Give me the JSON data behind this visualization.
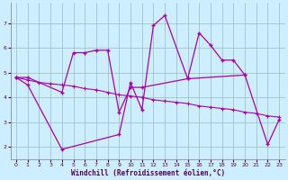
{
  "line_a_x": [
    0,
    1,
    2,
    3,
    4,
    5,
    6,
    7,
    8,
    9,
    10,
    11,
    12,
    13,
    14,
    15,
    16,
    17,
    18,
    19,
    20,
    21,
    22,
    23
  ],
  "line_a_y": [
    4.8,
    4.7,
    4.6,
    4.55,
    4.5,
    4.45,
    4.35,
    4.3,
    4.2,
    4.1,
    4.05,
    4.0,
    3.9,
    3.85,
    3.8,
    3.75,
    3.65,
    3.6,
    3.55,
    3.5,
    3.4,
    3.35,
    3.25,
    3.2
  ],
  "line_b_x": [
    0,
    1,
    4,
    9,
    10,
    11,
    12,
    13,
    15,
    16,
    17,
    18,
    19,
    20,
    22,
    23
  ],
  "line_b_y": [
    4.8,
    4.5,
    1.9,
    2.5,
    4.6,
    3.5,
    6.9,
    7.3,
    4.75,
    6.6,
    6.1,
    5.5,
    5.5,
    4.9,
    2.1,
    3.1
  ],
  "line_c_x": [
    0,
    1,
    4,
    5,
    6,
    7,
    8,
    9,
    10,
    11,
    15,
    20
  ],
  "line_c_y": [
    4.8,
    4.8,
    4.2,
    5.8,
    5.8,
    5.9,
    5.9,
    3.4,
    4.4,
    4.4,
    4.75,
    4.9
  ],
  "yticks": [
    2,
    3,
    4,
    5,
    6,
    7
  ],
  "xticks": [
    0,
    1,
    2,
    3,
    4,
    5,
    6,
    7,
    8,
    9,
    10,
    11,
    12,
    13,
    14,
    15,
    16,
    17,
    18,
    19,
    20,
    21,
    22,
    23
  ],
  "xlabel": "Windchill (Refroidissement éolien,°C)",
  "ylim": [
    1.5,
    7.8
  ],
  "xlim": [
    -0.5,
    23.5
  ],
  "bg_color": "#cceeff",
  "line_color": "#aa00aa",
  "grid_color": "#99bbbb",
  "label_color": "#550055"
}
